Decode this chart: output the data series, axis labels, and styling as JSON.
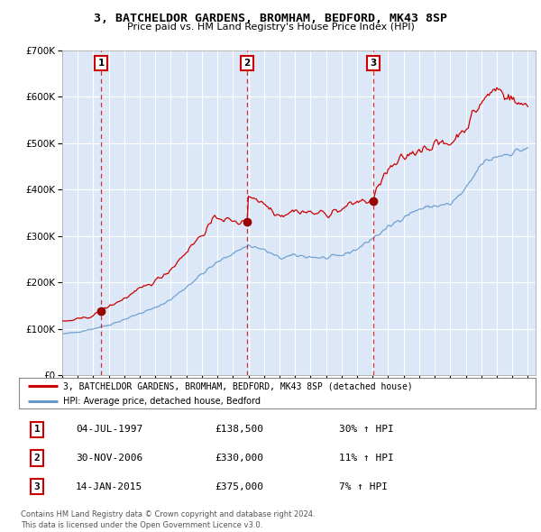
{
  "title": "3, BATCHELDOR GARDENS, BROMHAM, BEDFORD, MK43 8SP",
  "subtitle": "Price paid vs. HM Land Registry's House Price Index (HPI)",
  "ylim": [
    0,
    700000
  ],
  "yticks": [
    0,
    100000,
    200000,
    300000,
    400000,
    500000,
    600000,
    700000
  ],
  "ytick_labels": [
    "£0",
    "£100K",
    "£200K",
    "£300K",
    "£400K",
    "£500K",
    "£600K",
    "£700K"
  ],
  "plot_bg": "#dce8f7",
  "grid_color": "#ffffff",
  "red_line_color": "#cc0000",
  "blue_line_color": "#6699cc",
  "marker_color": "#990000",
  "sale_points": [
    {
      "year": 1997.5,
      "price": 138500,
      "label": "1"
    },
    {
      "year": 2006.92,
      "price": 330000,
      "label": "2"
    },
    {
      "year": 2015.04,
      "price": 375000,
      "label": "3"
    }
  ],
  "sale_table": [
    {
      "num": "1",
      "date": "04-JUL-1997",
      "price": "£138,500",
      "hpi": "30% ↑ HPI"
    },
    {
      "num": "2",
      "date": "30-NOV-2006",
      "price": "£330,000",
      "hpi": "11% ↑ HPI"
    },
    {
      "num": "3",
      "date": "14-JAN-2015",
      "price": "£375,000",
      "hpi": "7% ↑ HPI"
    }
  ],
  "legend_line1": "3, BATCHELDOR GARDENS, BROMHAM, BEDFORD, MK43 8SP (detached house)",
  "legend_line2": "HPI: Average price, detached house, Bedford",
  "footer1": "Contains HM Land Registry data © Crown copyright and database right 2024.",
  "footer2": "This data is licensed under the Open Government Licence v3.0.",
  "hpi_years_monthly": null,
  "hpi_vals_monthly": null,
  "prop_years_monthly": null,
  "prop_vals_monthly": null
}
